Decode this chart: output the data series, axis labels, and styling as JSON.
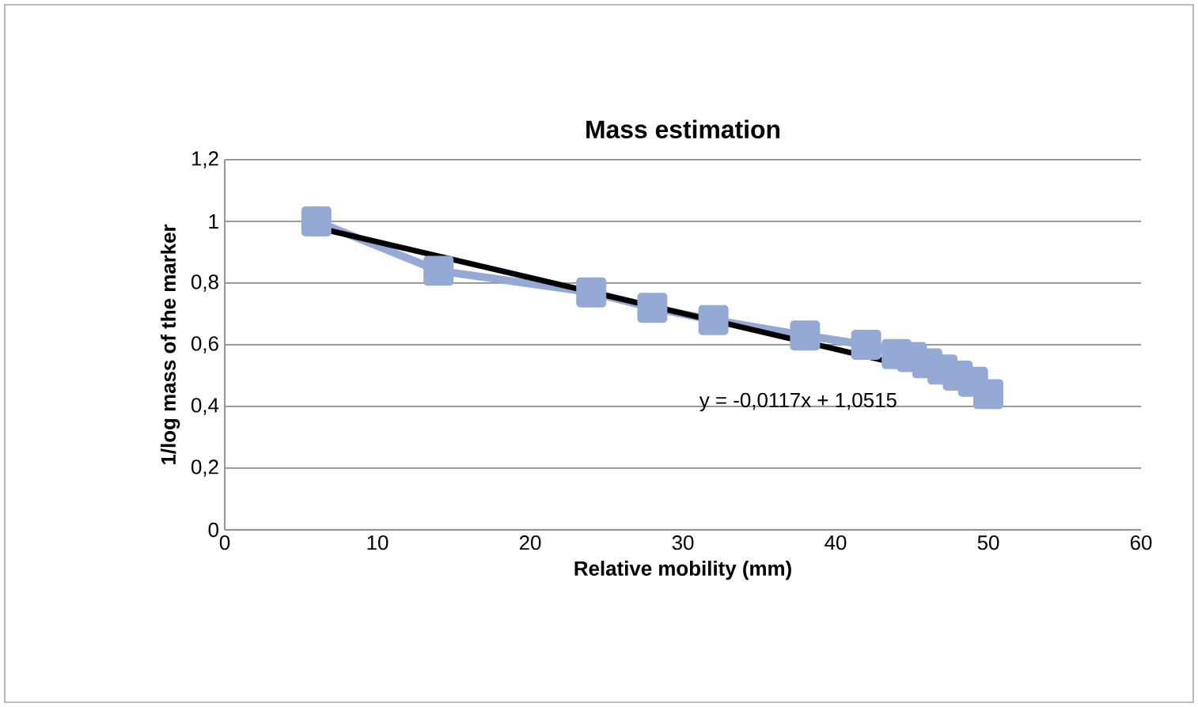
{
  "chart_data": {
    "type": "line",
    "title": "Mass estimation",
    "xlabel": "Relative mobility (mm)",
    "ylabel": "1/log mass of the marker",
    "x": [
      6,
      14,
      24,
      28,
      32,
      38,
      42,
      44,
      45,
      46,
      47,
      48,
      49,
      50
    ],
    "series": [
      {
        "color": "#94a9d4",
        "marker": "square",
        "values": [
          1.0,
          0.84,
          0.77,
          0.72,
          0.68,
          0.63,
          0.6,
          0.57,
          0.56,
          0.54,
          0.52,
          0.5,
          0.48,
          0.44
        ]
      },
      {
        "color": "#000000",
        "marker": "none",
        "x": [
          6,
          50
        ],
        "values": [
          0.98,
          0.47
        ]
      }
    ],
    "xlim": [
      0,
      60
    ],
    "xticks": [
      {
        "value": 0,
        "label": "0"
      },
      {
        "value": 10,
        "label": "10"
      },
      {
        "value": 20,
        "label": "20"
      },
      {
        "value": 30,
        "label": "30"
      },
      {
        "value": 40,
        "label": "40"
      },
      {
        "value": 50,
        "label": "50"
      },
      {
        "value": 60,
        "label": "60"
      }
    ],
    "ylim": [
      0,
      1.2
    ],
    "yticks": [
      {
        "value": 0,
        "label": "0"
      },
      {
        "value": 0.2,
        "label": "0,2"
      },
      {
        "value": 0.4,
        "label": "0,4"
      },
      {
        "value": 0.6,
        "label": "0,6"
      },
      {
        "value": 0.8,
        "label": "0,8"
      },
      {
        "value": 1,
        "label": "1"
      },
      {
        "value": 1.2,
        "label": "1,2"
      }
    ],
    "grid": "y",
    "annotations": [
      "y = -0,0117x + 1,0515"
    ]
  }
}
